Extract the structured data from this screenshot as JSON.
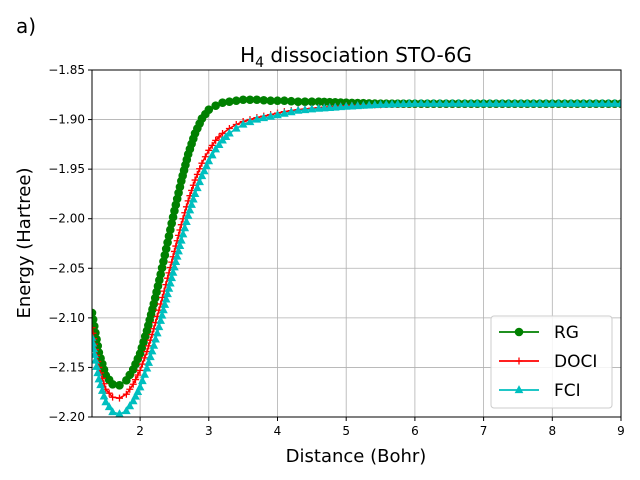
{
  "panel_label": "a)",
  "colors": {
    "RG": "#008000",
    "DOCI": "#ff0000",
    "FCI": "#00bfbf",
    "grid": "#b0b0b0",
    "axis": "#000000"
  },
  "chart_data": {
    "type": "line",
    "title_main": "H",
    "title_sub": "4",
    "title_rest": " dissociation STO-6G",
    "xlabel": "Distance (Bohr)",
    "ylabel": "Energy (Hartree)",
    "xlim": [
      1.3,
      9
    ],
    "ylim": [
      -2.2,
      -1.85
    ],
    "xticks": [
      2,
      3,
      4,
      5,
      6,
      7,
      8,
      9
    ],
    "xtick_labels": [
      "2",
      "3",
      "4",
      "5",
      "6",
      "7",
      "8",
      "9"
    ],
    "yticks": [
      -1.85,
      -1.9,
      -1.95,
      -2.0,
      -2.05,
      -2.1,
      -2.15,
      -2.2
    ],
    "ytick_labels": [
      "−1.85",
      "−1.90",
      "−1.95",
      "−2.00",
      "−2.05",
      "−2.10",
      "−2.15",
      "−2.20"
    ],
    "grid": true,
    "legend_position": "lower-right",
    "x": [
      1.3,
      1.35,
      1.4,
      1.5,
      1.6,
      1.7,
      1.8,
      1.9,
      2.0,
      2.1,
      2.2,
      2.3,
      2.4,
      2.5,
      2.6,
      2.7,
      2.8,
      2.9,
      3.0,
      3.1,
      3.2,
      3.3,
      3.4,
      3.5,
      3.7,
      3.9,
      4.1,
      4.3,
      4.6,
      5.0,
      5.5,
      6.0,
      7.0,
      8.0,
      9.0
    ],
    "series": [
      {
        "name": "RG",
        "marker": "circle",
        "values": [
          -2.095,
          -2.115,
          -2.135,
          -2.158,
          -2.167,
          -2.168,
          -2.163,
          -2.152,
          -2.136,
          -2.113,
          -2.086,
          -2.056,
          -2.024,
          -1.992,
          -1.962,
          -1.935,
          -1.914,
          -1.899,
          -1.89,
          -1.886,
          -1.883,
          -1.882,
          -1.881,
          -1.88,
          -1.88,
          -1.881,
          -1.881,
          -1.882,
          -1.882,
          -1.883,
          -1.884,
          -1.884,
          -1.884,
          -1.884,
          -1.884
        ]
      },
      {
        "name": "DOCI",
        "marker": "plus",
        "values": [
          -2.11,
          -2.132,
          -2.15,
          -2.172,
          -2.18,
          -2.181,
          -2.177,
          -2.167,
          -2.153,
          -2.134,
          -2.111,
          -2.086,
          -2.06,
          -2.033,
          -2.006,
          -1.982,
          -1.961,
          -1.944,
          -1.931,
          -1.921,
          -1.914,
          -1.909,
          -1.905,
          -1.902,
          -1.898,
          -1.895,
          -1.892,
          -1.89,
          -1.888,
          -1.886,
          -1.885,
          -1.884,
          -1.884,
          -1.884,
          -1.884
        ]
      },
      {
        "name": "FCI",
        "marker": "triangle",
        "values": [
          -2.12,
          -2.143,
          -2.162,
          -2.185,
          -2.195,
          -2.197,
          -2.194,
          -2.184,
          -2.17,
          -2.151,
          -2.128,
          -2.103,
          -2.076,
          -2.049,
          -2.022,
          -1.997,
          -1.975,
          -1.957,
          -1.942,
          -1.93,
          -1.921,
          -1.914,
          -1.909,
          -1.905,
          -1.9,
          -1.897,
          -1.894,
          -1.891,
          -1.889,
          -1.887,
          -1.885,
          -1.884,
          -1.884,
          -1.884,
          -1.884
        ]
      }
    ]
  }
}
